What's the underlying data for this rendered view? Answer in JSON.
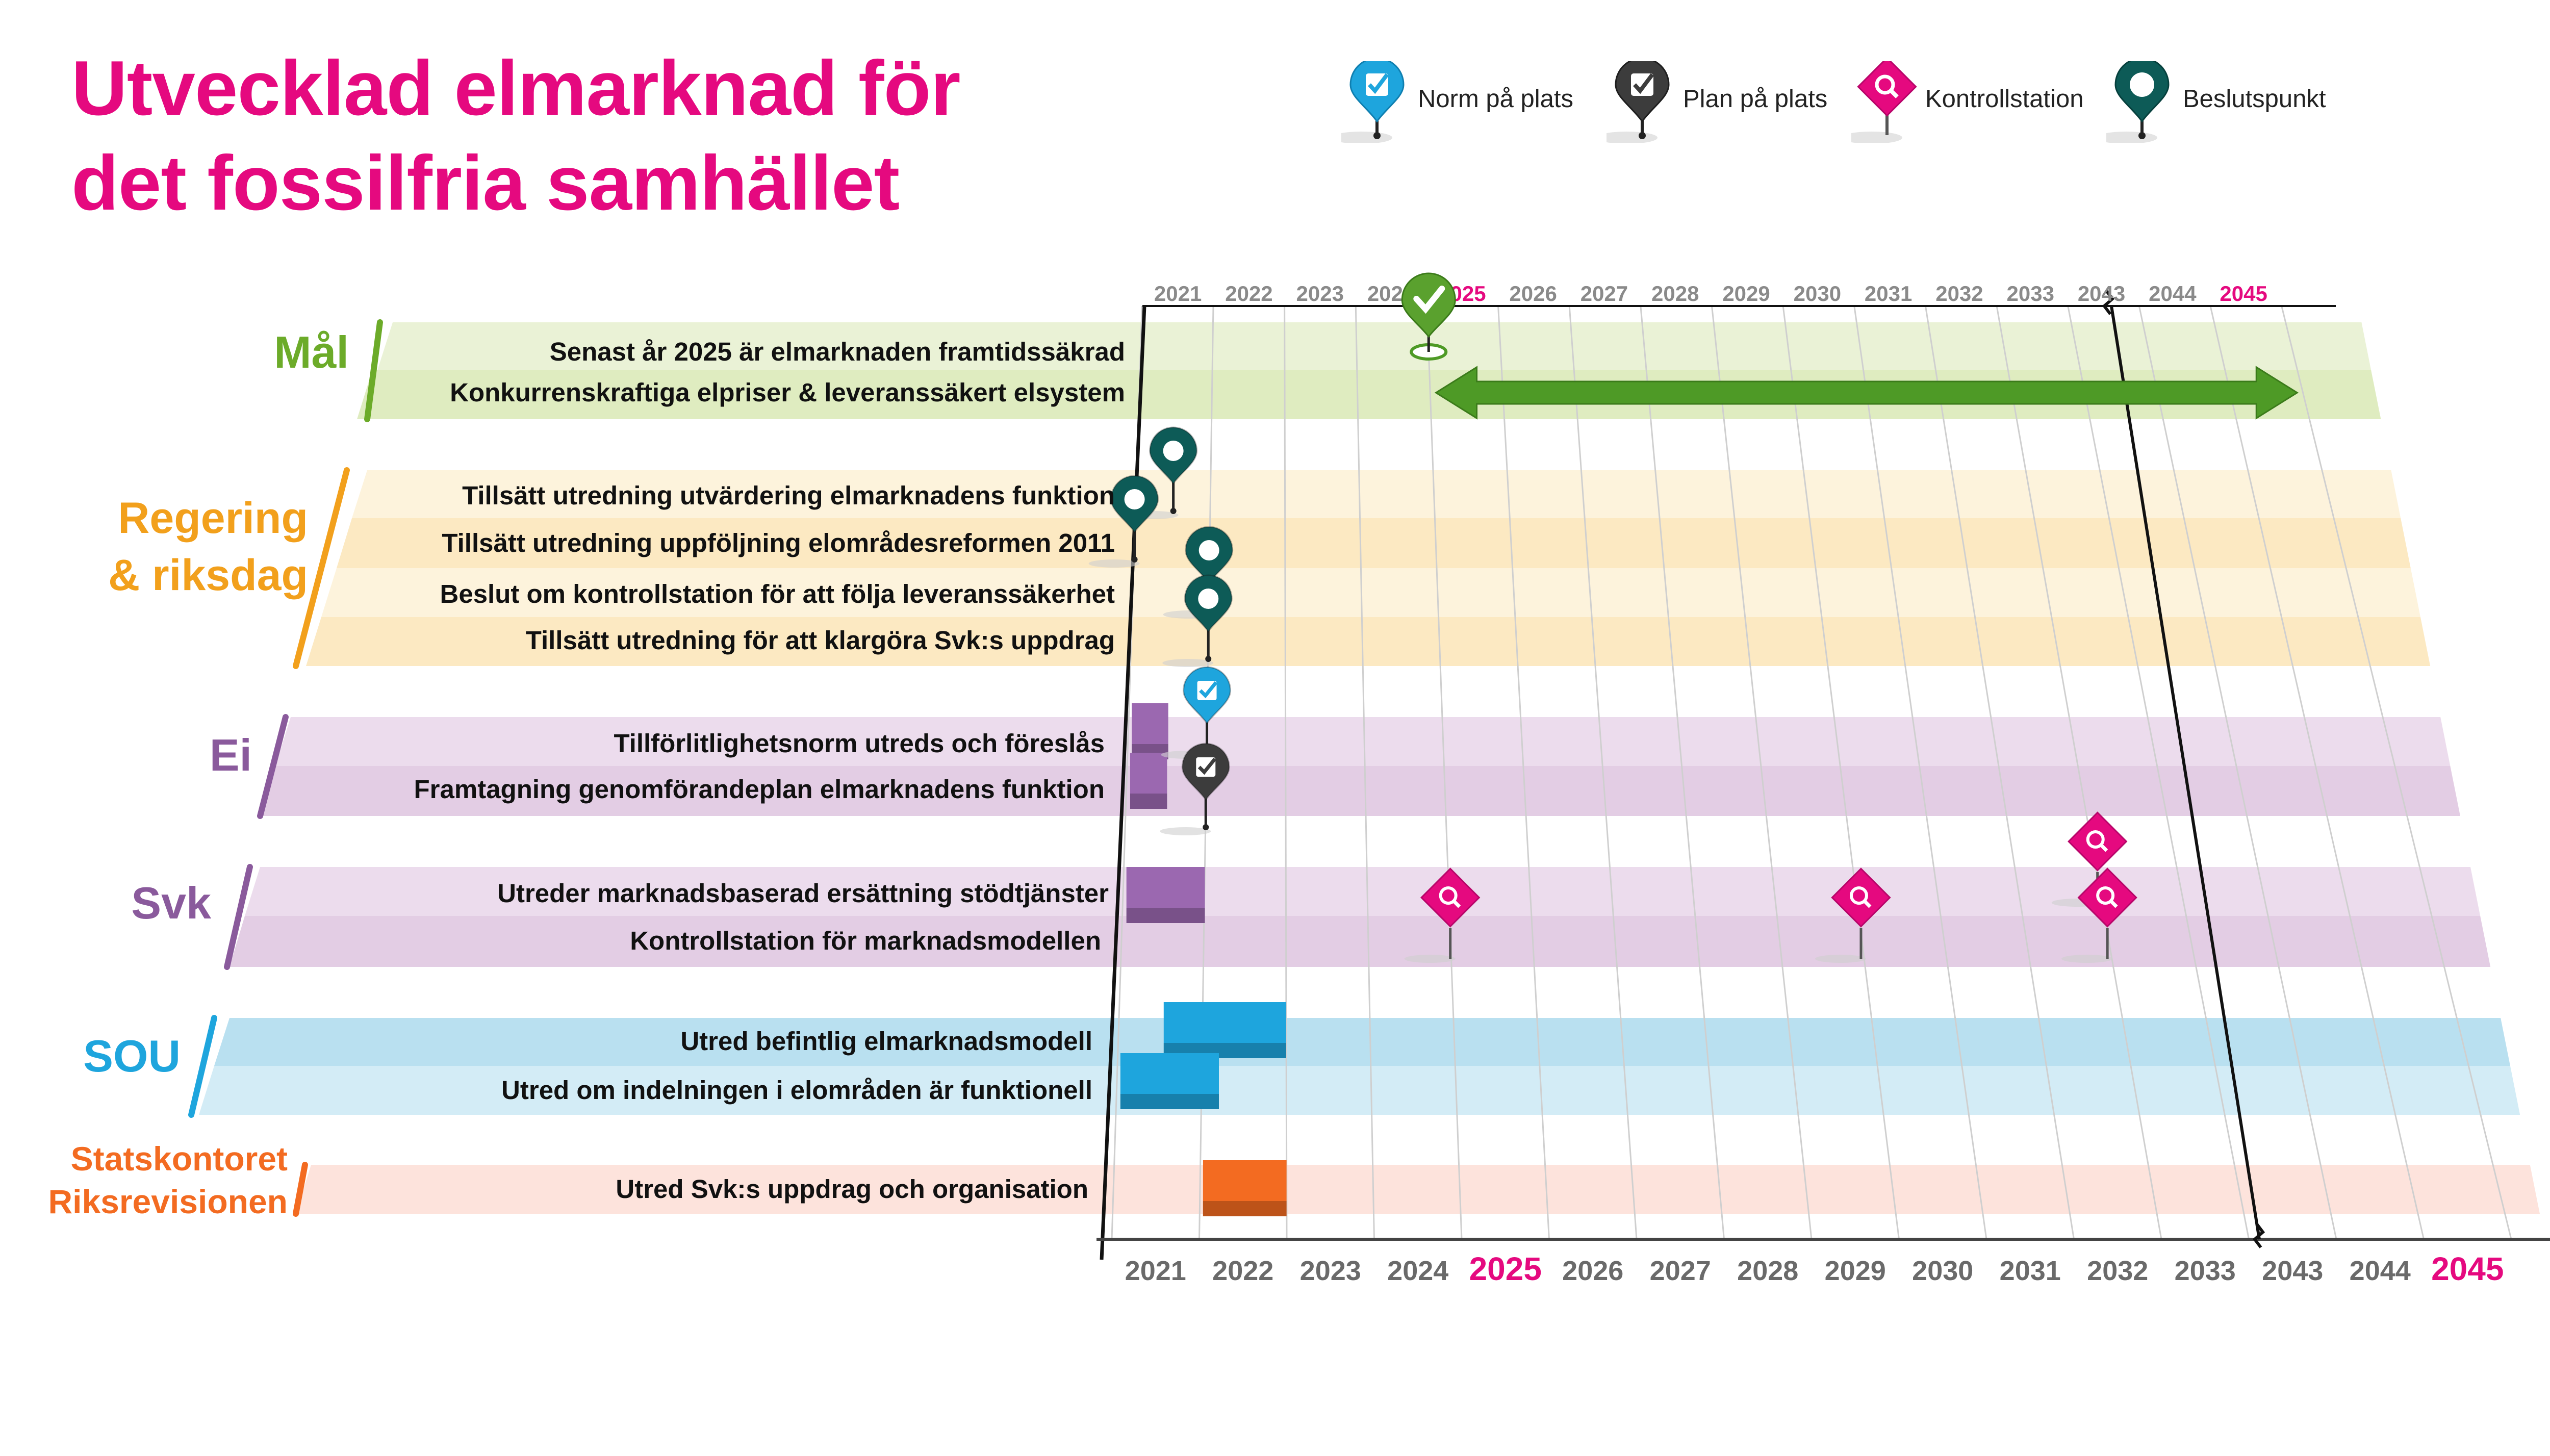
{
  "title": {
    "line1": "Utvecklad elmarknad för",
    "line2": "det fossilfria samhället"
  },
  "legend": [
    {
      "label": "Norm på plats",
      "icon": "norm-pin-icon",
      "color": "#1ea5dd"
    },
    {
      "label": "Plan på plats",
      "icon": "plan-pin-icon",
      "color": "#3c3c3c"
    },
    {
      "label": "Kontrollstation",
      "icon": "kontrollstation-icon",
      "color": "#e5097f"
    },
    {
      "label": "Beslutspunkt",
      "icon": "beslutspunkt-icon",
      "color": "#0d5b57"
    }
  ],
  "years": [
    "2021",
    "2022",
    "2023",
    "2024",
    "2025",
    "2026",
    "2027",
    "2028",
    "2029",
    "2030",
    "2031",
    "2032",
    "2033",
    "2043",
    "2044",
    "2045"
  ],
  "highlight_years": [
    "2025",
    "2045"
  ],
  "groups": [
    {
      "name": "Mål",
      "color": "#6cab29",
      "tasks": [
        "Senast år 2025 är elmarknaden framtidssäkrad",
        "Konkurrenskraftiga elpriser & leveranssäkert elsystem"
      ]
    },
    {
      "name": "Regering & riksdag",
      "line1": "Regering",
      "line2": "& riksdag",
      "color": "#f2a01c",
      "tasks": [
        "Tillsätt utredning utvärdering elmarknadens funktion",
        "Tillsätt utredning uppföljning elområdesreformen 2011",
        "Beslut om kontrollstation för att följa leveranssäkerhet",
        "Tillsätt utredning för att klargöra Svk:s uppdrag"
      ]
    },
    {
      "name": "Ei",
      "color": "#8a5a9c",
      "tasks": [
        "Tillförlitlighetsnorm utreds och föreslås",
        "Framtagning genomförandeplan elmarknadens funktion"
      ]
    },
    {
      "name": "Svk",
      "color": "#8a5a9c",
      "tasks": [
        "Utreder marknadsbaserad ersättning stödtjänster",
        "Kontrollstation för marknadsmodellen"
      ]
    },
    {
      "name": "SOU",
      "color": "#1ea5dd",
      "tasks": [
        "Utred befintlig elmarknadsmodell",
        "Utred om indelningen i elområden är funktionell"
      ]
    },
    {
      "name": "Statskontoret Riksrevisionen",
      "line1": "Statskontoret",
      "line2": "Riksrevisionen",
      "color": "#f36b21",
      "tasks": [
        "Utred Svk:s uppdrag och organisation"
      ]
    }
  ],
  "chart_data": {
    "type": "timeline",
    "x_axis": [
      "2021",
      "2022",
      "2023",
      "2024",
      "2025",
      "2026",
      "2027",
      "2028",
      "2029",
      "2030",
      "2031",
      "2032",
      "2033",
      "2043",
      "2044",
      "2045"
    ],
    "goal_arrow": {
      "from": "2025",
      "to": "2045"
    },
    "goal_marker": {
      "year": "2025",
      "icon": "check-pin-icon"
    },
    "bars": [
      {
        "task": "Tillförlitlighetsnorm utreds och föreslås",
        "start": 2021.0,
        "end": 2021.5,
        "color": "#9b68b0"
      },
      {
        "task": "Framtagning genomförandeplan elmarknadens funktion",
        "start": 2021.0,
        "end": 2021.5,
        "color": "#9b68b0"
      },
      {
        "task": "Utreder marknadsbaserad ersättning stödtjänster",
        "start": 2021.0,
        "end": 2022.0,
        "color": "#9b68b0"
      },
      {
        "task": "Utred befintlig elmarknadsmodell",
        "start": 2021.5,
        "end": 2023.0,
        "color": "#1ea5dd"
      },
      {
        "task": "Utred om indelningen i elområden är funktionell",
        "start": 2021.0,
        "end": 2022.2,
        "color": "#1ea5dd"
      },
      {
        "task": "Utred Svk:s uppdrag och organisation",
        "start": 2022.0,
        "end": 2023.0,
        "color": "#f36b21"
      }
    ],
    "milestones": [
      {
        "task": "Tillsätt utredning utvärdering elmarknadens funktion",
        "year": 2021.5,
        "type": "Beslutspunkt"
      },
      {
        "task": "Tillsätt utredning uppföljning elområdesreformen 2011",
        "year": 2021.0,
        "type": "Beslutspunkt"
      },
      {
        "task": "Beslut om kontrollstation för att följa leveranssäkerhet",
        "year": 2022.0,
        "type": "Beslutspunkt"
      },
      {
        "task": "Tillsätt utredning för att klargöra Svk:s uppdrag",
        "year": 2022.0,
        "type": "Beslutspunkt"
      },
      {
        "task": "Tillförlitlighetsnorm utreds och föreslås",
        "year": 2022.0,
        "type": "Norm på plats"
      },
      {
        "task": "Framtagning genomförandeplan elmarknadens funktion",
        "year": 2022.0,
        "type": "Plan på plats"
      },
      {
        "task": "Kontrollstation för marknadsmodellen",
        "year": 2025,
        "type": "Kontrollstation"
      },
      {
        "task": "Kontrollstation för marknadsmodellen",
        "year": 2030,
        "type": "Kontrollstation"
      },
      {
        "task": "Utreder marknadsbaserad ersättning stödtjänster",
        "year": 2033,
        "type": "Kontrollstation"
      },
      {
        "task": "Kontrollstation för marknadsmodellen",
        "year": 2033,
        "type": "Kontrollstation"
      }
    ]
  }
}
